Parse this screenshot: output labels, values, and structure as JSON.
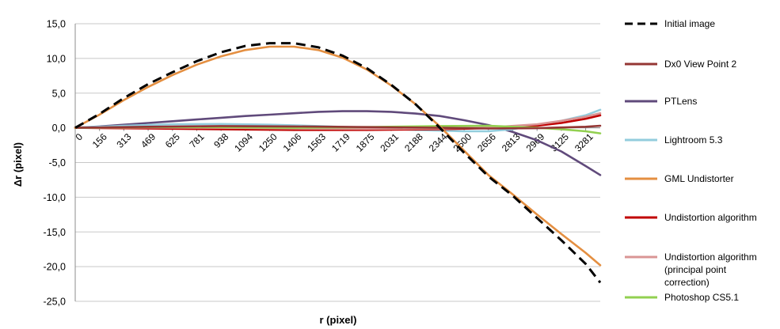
{
  "chart_data": {
    "type": "line",
    "title": "",
    "xlabel": "r (pixel)",
    "ylabel": "Δr (pixel)",
    "ylim": [
      -25,
      15
    ],
    "yticks": [
      "15,0",
      "10,0",
      "5,0",
      "0,0",
      "-5,0",
      "-10,0",
      "-15,0",
      "-20,0",
      "-25,0"
    ],
    "x_tick_labels": [
      "0",
      "156",
      "313",
      "469",
      "625",
      "781",
      "938",
      "1094",
      "1250",
      "1406",
      "1563",
      "1719",
      "1875",
      "2031",
      "2188",
      "2344",
      "2500",
      "2656",
      "2813",
      "2969",
      "3125",
      "3281"
    ],
    "xlim": [
      0,
      3375
    ],
    "grid": "horizontal",
    "legend_position": "right",
    "series": [
      {
        "name": "Initial image",
        "color": "#000000",
        "dash": true,
        "x": [
          0,
          156,
          313,
          469,
          625,
          781,
          938,
          1094,
          1250,
          1406,
          1563,
          1719,
          1875,
          2031,
          2188,
          2344,
          2500,
          2656,
          2813,
          2969,
          3125,
          3281,
          3375
        ],
        "y": [
          0,
          2.0,
          4.3,
          6.3,
          8.0,
          9.6,
          10.9,
          11.8,
          12.2,
          12.2,
          11.6,
          10.4,
          8.6,
          6.2,
          3.4,
          0,
          -3.6,
          -7.0,
          -9.8,
          -13.0,
          -16.2,
          -19.6,
          -22.3
        ]
      },
      {
        "name": "Dx0 View Point 2",
        "color": "#943634",
        "x": [
          0,
          469,
          938,
          1406,
          1875,
          2344,
          2656,
          2969,
          3281,
          3375
        ],
        "y": [
          0,
          0.15,
          0.25,
          0.2,
          0.1,
          0,
          -0.1,
          -0.05,
          0.15,
          0.3
        ]
      },
      {
        "name": "PTLens",
        "color": "#604a7b",
        "x": [
          0,
          156,
          313,
          469,
          625,
          781,
          938,
          1094,
          1250,
          1406,
          1563,
          1719,
          1875,
          2031,
          2188,
          2344,
          2500,
          2656,
          2813,
          2969,
          3125,
          3281,
          3375
        ],
        "y": [
          0,
          0.2,
          0.45,
          0.7,
          0.95,
          1.2,
          1.45,
          1.7,
          1.9,
          2.1,
          2.3,
          2.4,
          2.4,
          2.3,
          2.05,
          1.7,
          1.1,
          0.4,
          -0.6,
          -1.8,
          -3.4,
          -5.5,
          -6.8
        ]
      },
      {
        "name": "Lightroom 5.3",
        "color": "#93cddd",
        "x": [
          0,
          313,
          625,
          938,
          1250,
          1563,
          1875,
          2188,
          2500,
          2656,
          2813,
          2969,
          3125,
          3281,
          3375
        ],
        "y": [
          0,
          0.3,
          0.5,
          0.55,
          0.45,
          0.25,
          0,
          -0.3,
          -0.5,
          -0.5,
          -0.2,
          0.4,
          1.0,
          1.8,
          2.6
        ]
      },
      {
        "name": "GML Undistorter",
        "color": "#e48f41",
        "x": [
          0,
          156,
          313,
          469,
          625,
          781,
          938,
          1094,
          1250,
          1406,
          1563,
          1719,
          1875,
          2031,
          2188,
          2344,
          2500,
          2656,
          2813,
          2969,
          3125,
          3281,
          3375
        ],
        "y": [
          0,
          1.9,
          4.0,
          5.9,
          7.6,
          9.1,
          10.3,
          11.2,
          11.7,
          11.7,
          11.2,
          10.1,
          8.4,
          6.1,
          3.4,
          0.2,
          -3.3,
          -6.8,
          -9.6,
          -12.5,
          -15.3,
          -18.0,
          -19.8
        ]
      },
      {
        "name": "Undistortion algorithm",
        "color": "#c00000",
        "x": [
          0,
          469,
          938,
          1406,
          1875,
          2344,
          2656,
          2969,
          3125,
          3281,
          3375
        ],
        "y": [
          0,
          -0.1,
          -0.2,
          -0.3,
          -0.3,
          -0.2,
          -0.05,
          0.3,
          0.7,
          1.3,
          1.8
        ]
      },
      {
        "name": "Undistortion algorithm (principal point correction)",
        "color": "#d99594",
        "x": [
          0,
          469,
          938,
          1406,
          1875,
          2344,
          2656,
          2969,
          3125,
          3281,
          3375
        ],
        "y": [
          0,
          0.05,
          0.0,
          -0.1,
          -0.15,
          -0.1,
          0.05,
          0.5,
          1.0,
          1.6,
          2.1
        ]
      },
      {
        "name": "Photoshop CS5.1",
        "color": "#92d050",
        "x": [
          0,
          469,
          938,
          1406,
          1875,
          2344,
          2656,
          2969,
          3125,
          3281,
          3375
        ],
        "y": [
          0,
          0.1,
          0.1,
          0.0,
          0.1,
          0.25,
          0.3,
          0.0,
          -0.2,
          -0.5,
          -0.8
        ]
      }
    ]
  },
  "legend": [
    {
      "lines": [
        "Initial image"
      ]
    },
    {
      "lines": [
        "Dx0 View Point 2"
      ]
    },
    {
      "lines": [
        "PTLens"
      ]
    },
    {
      "lines": [
        "Lightroom 5.3"
      ]
    },
    {
      "lines": [
        "GML Undistorter"
      ]
    },
    {
      "lines": [
        "Undistortion algorithm"
      ]
    },
    {
      "lines": [
        "Undistortion algorithm",
        "(principal point",
        "correction)"
      ]
    },
    {
      "lines": [
        "Photoshop CS5.1"
      ]
    }
  ]
}
